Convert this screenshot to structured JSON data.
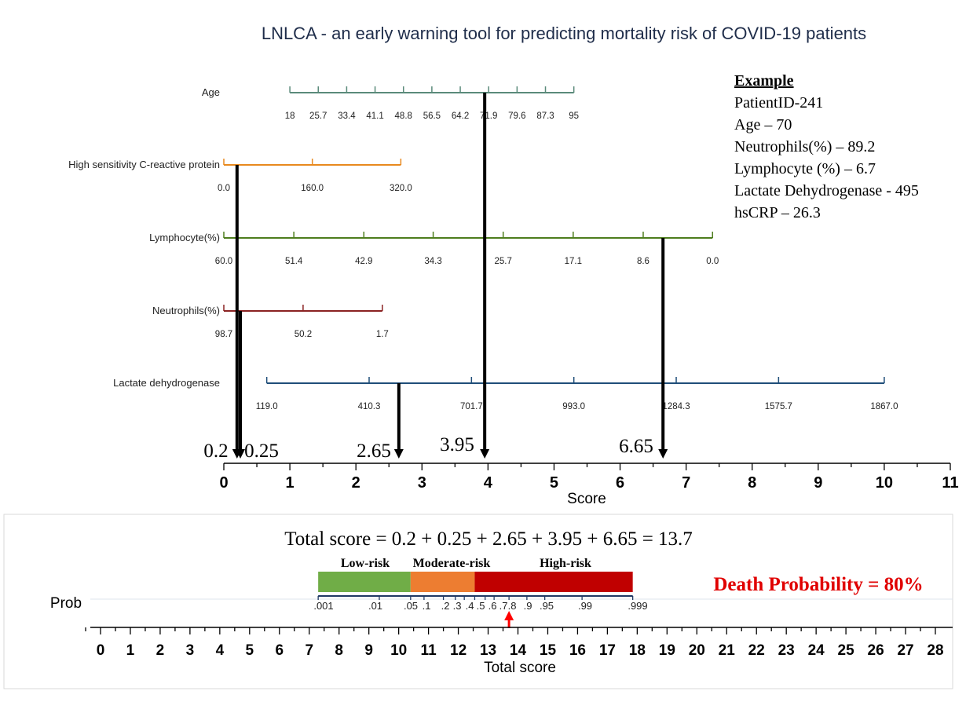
{
  "chart_data": {
    "type": "nomogram",
    "title": "LNLCA - an early warning tool for predicting mortality risk of COVID-19 patients",
    "score_axis": {
      "label": "Score",
      "min": 0,
      "max": 11,
      "ticks": [
        "0",
        "1",
        "2",
        "3",
        "4",
        "5",
        "6",
        "7",
        "8",
        "9",
        "10",
        "11"
      ]
    },
    "predictors": [
      {
        "name": "Age",
        "color": "#5a8a7a",
        "points": [
          {
            "label": "18",
            "score": 1.0
          },
          {
            "label": "25.7",
            "score": 1.43
          },
          {
            "label": "33.4",
            "score": 1.86
          },
          {
            "label": "41.1",
            "score": 2.29
          },
          {
            "label": "48.8",
            "score": 2.72
          },
          {
            "label": "56.5",
            "score": 3.15
          },
          {
            "label": "64.2",
            "score": 3.58
          },
          {
            "label": "71.9",
            "score": 4.01
          },
          {
            "label": "79.6",
            "score": 4.44
          },
          {
            "label": "87.3",
            "score": 4.87
          },
          {
            "label": "95",
            "score": 5.3
          }
        ]
      },
      {
        "name": "High sensitivity C-reactive protein",
        "color": "#e8891e",
        "points": [
          {
            "label": "0.0",
            "score": 0.0
          },
          {
            "label": "160.0",
            "score": 1.34
          },
          {
            "label": "320.0",
            "score": 2.68
          }
        ]
      },
      {
        "name": "Lymphocyte(%)",
        "color": "#4e7d1e",
        "points": [
          {
            "label": "60.0",
            "score": 0.0
          },
          {
            "label": "51.4",
            "score": 1.06
          },
          {
            "label": "42.9",
            "score": 2.12
          },
          {
            "label": "34.3",
            "score": 3.17
          },
          {
            "label": "25.7",
            "score": 4.23
          },
          {
            "label": "17.1",
            "score": 5.29
          },
          {
            "label": "8.6",
            "score": 6.35
          },
          {
            "label": "0.0",
            "score": 7.4
          }
        ]
      },
      {
        "name": "Neutrophils(%)",
        "color": "#8b2323",
        "points": [
          {
            "label": "98.7",
            "score": 0.0
          },
          {
            "label": "50.2",
            "score": 1.2
          },
          {
            "label": "1.7",
            "score": 2.4
          }
        ]
      },
      {
        "name": "Lactate dehydrogenase",
        "color": "#1f4e79",
        "points": [
          {
            "label": "119.0",
            "score": 0.65
          },
          {
            "label": "410.3",
            "score": 2.2
          },
          {
            "label": "701.7",
            "score": 3.75
          },
          {
            "label": "993.0",
            "score": 5.3
          },
          {
            "label": "1284.3",
            "score": 6.85
          },
          {
            "label": "1575.7",
            "score": 8.4
          },
          {
            "label": "1867.0",
            "score": 10.0
          }
        ]
      }
    ],
    "example_arrows": [
      {
        "label": "0.2",
        "score": 0.2,
        "from": "High sensitivity C-reactive protein"
      },
      {
        "label": "0.25",
        "score": 0.25,
        "from": "Neutrophils(%)"
      },
      {
        "label": "2.65",
        "score": 2.65,
        "from": "Lactate dehydrogenase"
      },
      {
        "label": "3.95",
        "score": 3.95,
        "from": "Age"
      },
      {
        "label": "6.65",
        "score": 6.65,
        "from": "Lymphocyte(%)"
      }
    ],
    "total_axis": {
      "label": "Total score",
      "min": 0,
      "max": 28,
      "ticks": [
        "0",
        "1",
        "2",
        "3",
        "4",
        "5",
        "6",
        "7",
        "8",
        "9",
        "10",
        "11",
        "12",
        "13",
        "14",
        "15",
        "16",
        "17",
        "18",
        "19",
        "20",
        "21",
        "22",
        "23",
        "24",
        "25",
        "26",
        "27",
        "28"
      ]
    },
    "prob_axis": {
      "label": "Prob",
      "points": [
        {
          "label": ".001",
          "total": 7.3
        },
        {
          "label": ".01",
          "total": 9.35
        },
        {
          "label": ".05",
          "total": 10.4
        },
        {
          "label": ".1",
          "total": 10.85
        },
        {
          "label": ".2",
          "total": 11.5
        },
        {
          "label": ".3",
          "total": 11.9
        },
        {
          "label": ".4",
          "total": 12.2
        },
        {
          "label": ".5",
          "total": 12.55
        },
        {
          "label": ".6",
          "total": 12.9
        },
        {
          "label": ".7",
          "total": 13.2
        },
        {
          "label": ".8",
          "total": 13.7
        },
        {
          "label": ".9",
          "total": 14.3
        },
        {
          "label": ".95",
          "total": 14.9
        },
        {
          "label": ".99",
          "total": 16.15
        },
        {
          "label": ".999",
          "total": 17.85
        }
      ]
    },
    "risk_bands": [
      {
        "label": "Low-risk",
        "from": 7.3,
        "to": 10.4,
        "color": "#70ad47"
      },
      {
        "label": "Moderate-risk",
        "from": 10.4,
        "to": 12.55,
        "color": "#ed7d31"
      },
      {
        "label": "High-risk",
        "from": 12.55,
        "to": 17.85,
        "color": "#c00000"
      }
    ],
    "total_marker": 13.7,
    "total_score_text": "Total score = 0.2 + 0.25 + 2.65 + 3.95 + 6.65 = 13.7",
    "death_text": "Death Probability = 80%",
    "example": {
      "heading": "Example",
      "lines": [
        "PatientID-241",
        "Age – 70",
        "Neutrophils(%) – 89.2",
        "Lymphocyte (%) – 6.7",
        "Lactate Dehydrogenase  - 495",
        "hsCRP – 26.3"
      ]
    }
  },
  "colors": {
    "axis": "#000000",
    "arrow": "#000000",
    "marker": "#ff0000",
    "frame": "#d9d9d9"
  }
}
